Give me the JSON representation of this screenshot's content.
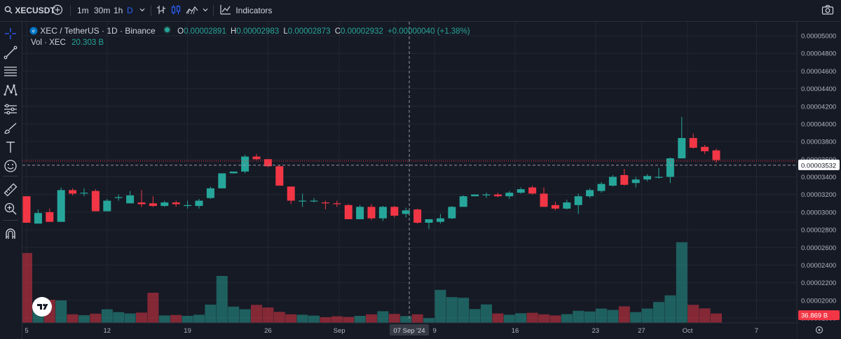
{
  "toolbar": {
    "symbol": "XECUSDT",
    "intervals": [
      "1m",
      "30m",
      "1h",
      "D"
    ],
    "indicators_label": "Indicators"
  },
  "legend": {
    "title": "XEC / TetherUS · 1D · Binance",
    "open_label": "O",
    "open": "0.00002891",
    "high_label": "H",
    "high": "0.00002983",
    "low_label": "L",
    "low": "0.00002873",
    "close_label": "C",
    "close": "0.00002932",
    "change": "+0.00000040 (+1.38%)",
    "vol_label": "Vol · XEC",
    "vol_value": "20.303 B"
  },
  "colors": {
    "up": "#26a69a",
    "down": "#f23645",
    "background": "#161a25",
    "grid": "#232733"
  },
  "crosshair_date": "07 Sep '24",
  "price_tag": "0.00003532",
  "volume_tag": "36.869 B",
  "chart_data": {
    "type": "candlestick",
    "title": "XEC / TetherUS · 1D · Binance",
    "y_ticks": [
      "0.00005000",
      "0.00004800",
      "0.00004600",
      "0.00004400",
      "0.00004200",
      "0.00004000",
      "0.00003800",
      "0.00003600",
      "0.00003400",
      "0.00003200",
      "0.00003000",
      "0.00002800",
      "0.00002600",
      "0.00002400",
      "0.00002200",
      "0.00002000",
      "0.00001800"
    ],
    "ylim": [
      1.8e-05,
      5e-05
    ],
    "x_ticks": [
      "5",
      "12",
      "19",
      "26",
      "Sep",
      "5",
      "9",
      "16",
      "23",
      "27",
      "Oct",
      "7"
    ],
    "last_price": 3.532e-05,
    "candles": [
      {
        "o": 3.18e-05,
        "h": 3.18e-05,
        "l": 2.88e-05,
        "c": 2.88e-05,
        "v": 32.0
      },
      {
        "o": 2.87e-05,
        "h": 3.03e-05,
        "l": 2.87e-05,
        "c": 2.99e-05,
        "v": 8.5
      },
      {
        "o": 3e-05,
        "h": 3.04e-05,
        "l": 2.89e-05,
        "c": 2.89e-05,
        "v": 10.8
      },
      {
        "o": 2.89e-05,
        "h": 3.28e-05,
        "l": 2.89e-05,
        "c": 3.25e-05,
        "v": 10.5
      },
      {
        "o": 3.25e-05,
        "h": 3.27e-05,
        "l": 3.19e-05,
        "c": 3.21e-05,
        "v": 4.2
      },
      {
        "o": 3.22e-05,
        "h": 3.27e-05,
        "l": 3.18e-05,
        "c": 3.22e-05,
        "v": 3.8
      },
      {
        "o": 3.24e-05,
        "h": 3.26e-05,
        "l": 3.01e-05,
        "c": 3.01e-05,
        "v": 4.5
      },
      {
        "o": 3.01e-05,
        "h": 3.15e-05,
        "l": 3.01e-05,
        "c": 3.13e-05,
        "v": 6.5
      },
      {
        "o": 3.16e-05,
        "h": 3.2e-05,
        "l": 3.13e-05,
        "c": 3.17e-05,
        "v": 5.2
      },
      {
        "o": 3.1e-05,
        "h": 3.24e-05,
        "l": 3.1e-05,
        "c": 3.19e-05,
        "v": 4.6
      },
      {
        "o": 3.11e-05,
        "h": 3.25e-05,
        "l": 3.06e-05,
        "c": 3.09e-05,
        "v": 5.0
      },
      {
        "o": 3.1e-05,
        "h": 3.18e-05,
        "l": 3.06e-05,
        "c": 3.07e-05,
        "v": 14.0
      },
      {
        "o": 3.07e-05,
        "h": 3.13e-05,
        "l": 3.06e-05,
        "c": 3.11e-05,
        "v": 3.7
      },
      {
        "o": 3.11e-05,
        "h": 3.13e-05,
        "l": 3.06e-05,
        "c": 3.09e-05,
        "v": 3.9
      },
      {
        "o": 3.07e-05,
        "h": 3.13e-05,
        "l": 3.04e-05,
        "c": 3.08e-05,
        "v": 3.5
      },
      {
        "o": 3.07e-05,
        "h": 3.15e-05,
        "l": 3.04e-05,
        "c": 3.13e-05,
        "v": 4.0
      },
      {
        "o": 3.16e-05,
        "h": 3.29e-05,
        "l": 3.15e-05,
        "c": 3.27e-05,
        "v": 8.6
      },
      {
        "o": 3.27e-05,
        "h": 3.44e-05,
        "l": 3.27e-05,
        "c": 3.44e-05,
        "v": 21.6
      },
      {
        "o": 3.44e-05,
        "h": 3.46e-05,
        "l": 3.45e-05,
        "c": 3.46e-05,
        "v": 7.7
      },
      {
        "o": 3.46e-05,
        "h": 3.65e-05,
        "l": 3.44e-05,
        "c": 3.63e-05,
        "v": 6.5
      },
      {
        "o": 3.63e-05,
        "h": 3.66e-05,
        "l": 3.59e-05,
        "c": 3.6e-05,
        "v": 8.5
      },
      {
        "o": 3.6e-05,
        "h": 3.6e-05,
        "l": 3.51e-05,
        "c": 3.52e-05,
        "v": 7.3
      },
      {
        "o": 3.52e-05,
        "h": 3.53e-05,
        "l": 3.3e-05,
        "c": 3.3e-05,
        "v": 5.3
      },
      {
        "o": 3.29e-05,
        "h": 3.29e-05,
        "l": 3.09e-05,
        "c": 3.13e-05,
        "v": 4.2
      },
      {
        "o": 3.13e-05,
        "h": 3.21e-05,
        "l": 3.06e-05,
        "c": 3.13e-05,
        "v": 4.0
      },
      {
        "o": 3.13e-05,
        "h": 3.16e-05,
        "l": 3.11e-05,
        "c": 3.13e-05,
        "v": 3.6
      },
      {
        "o": 3.11e-05,
        "h": 3.13e-05,
        "l": 3.03e-05,
        "c": 3.1e-05,
        "v": 2.9
      },
      {
        "o": 3.1e-05,
        "h": 3.13e-05,
        "l": 3.06e-05,
        "c": 3.09e-05,
        "v": 3.3
      },
      {
        "o": 3.08e-05,
        "h": 3.09e-05,
        "l": 2.92e-05,
        "c": 2.92e-05,
        "v": 3.0
      },
      {
        "o": 2.92e-05,
        "h": 3.08e-05,
        "l": 2.92e-05,
        "c": 3.06e-05,
        "v": 3.5
      },
      {
        "o": 3.06e-05,
        "h": 3.09e-05,
        "l": 2.91e-05,
        "c": 2.93e-05,
        "v": 4.2
      },
      {
        "o": 2.93e-05,
        "h": 3.07e-05,
        "l": 2.9e-05,
        "c": 3.06e-05,
        "v": 5.6
      },
      {
        "o": 3.06e-05,
        "h": 3.07e-05,
        "l": 2.94e-05,
        "c": 2.96e-05,
        "v": 4.4
      },
      {
        "o": 2.98e-05,
        "h": 3.05e-05,
        "l": 2.94e-05,
        "c": 3.02e-05,
        "v": 3.4
      },
      {
        "o": 3.03e-05,
        "h": 3.04e-05,
        "l": 2.87e-05,
        "c": 2.88e-05,
        "v": 4.2
      },
      {
        "o": 2.88e-05,
        "h": 2.91e-05,
        "l": 2.81e-05,
        "c": 2.92e-05,
        "v": 2.5
      },
      {
        "o": 2.89e-05,
        "h": 2.98e-05,
        "l": 2.87e-05,
        "c": 2.93e-05,
        "v": 15.3
      },
      {
        "o": 2.93e-05,
        "h": 3.07e-05,
        "l": 2.92e-05,
        "c": 3.06e-05,
        "v": 12.0
      },
      {
        "o": 3.06e-05,
        "h": 3.19e-05,
        "l": 3.06e-05,
        "c": 3.18e-05,
        "v": 11.7
      },
      {
        "o": 3.18e-05,
        "h": 3.2e-05,
        "l": 3.18e-05,
        "c": 3.2e-05,
        "v": 6.6
      },
      {
        "o": 3.19e-05,
        "h": 3.22e-05,
        "l": 3.16e-05,
        "c": 3.2e-05,
        "v": 8.7
      },
      {
        "o": 3.2e-05,
        "h": 3.22e-05,
        "l": 3.17e-05,
        "c": 3.18e-05,
        "v": 4.6
      },
      {
        "o": 3.18e-05,
        "h": 3.24e-05,
        "l": 3.15e-05,
        "c": 3.22e-05,
        "v": 4.0
      },
      {
        "o": 3.22e-05,
        "h": 3.28e-05,
        "l": 3.21e-05,
        "c": 3.26e-05,
        "v": 4.7
      },
      {
        "o": 3.28e-05,
        "h": 3.3e-05,
        "l": 3.2e-05,
        "c": 3.21e-05,
        "v": 4.9
      },
      {
        "o": 3.21e-05,
        "h": 3.28e-05,
        "l": 3.06e-05,
        "c": 3.06e-05,
        "v": 4.2
      },
      {
        "o": 3.08e-05,
        "h": 3.12e-05,
        "l": 3.02e-05,
        "c": 3.04e-05,
        "v": 3.7
      },
      {
        "o": 3.04e-05,
        "h": 3.14e-05,
        "l": 3.03e-05,
        "c": 3.11e-05,
        "v": 4.3
      },
      {
        "o": 3.08e-05,
        "h": 3.21e-05,
        "l": 2.98e-05,
        "c": 3.18e-05,
        "v": 5.8
      },
      {
        "o": 3.18e-05,
        "h": 3.27e-05,
        "l": 3.16e-05,
        "c": 3.25e-05,
        "v": 5.5
      },
      {
        "o": 3.24e-05,
        "h": 3.34e-05,
        "l": 3.22e-05,
        "c": 3.32e-05,
        "v": 6.8
      },
      {
        "o": 3.3e-05,
        "h": 3.42e-05,
        "l": 3.29e-05,
        "c": 3.4e-05,
        "v": 6.2
      },
      {
        "o": 3.42e-05,
        "h": 3.49e-05,
        "l": 3.3e-05,
        "c": 3.31e-05,
        "v": 7.8
      },
      {
        "o": 3.33e-05,
        "h": 3.4e-05,
        "l": 3.28e-05,
        "c": 3.37e-05,
        "v": 5.2
      },
      {
        "o": 3.37e-05,
        "h": 3.43e-05,
        "l": 3.35e-05,
        "c": 3.41e-05,
        "v": 6.8
      },
      {
        "o": 3.39e-05,
        "h": 3.5e-05,
        "l": 3.38e-05,
        "c": 3.4e-05,
        "v": 9.8
      },
      {
        "o": 3.4e-05,
        "h": 3.62e-05,
        "l": 3.33e-05,
        "c": 3.61e-05,
        "v": 12.8
      },
      {
        "o": 3.61e-05,
        "h": 4.08e-05,
        "l": 3.61e-05,
        "c": 3.84e-05,
        "v": 36.9
      },
      {
        "o": 3.84e-05,
        "h": 3.89e-05,
        "l": 3.72e-05,
        "c": 3.73e-05,
        "v": 8.5
      },
      {
        "o": 3.74e-05,
        "h": 3.76e-05,
        "l": 3.66e-05,
        "c": 3.69e-05,
        "v": 6.9
      },
      {
        "o": 3.7e-05,
        "h": 3.72e-05,
        "l": 3.56e-05,
        "c": 3.59e-05,
        "v": 4.6
      }
    ]
  }
}
